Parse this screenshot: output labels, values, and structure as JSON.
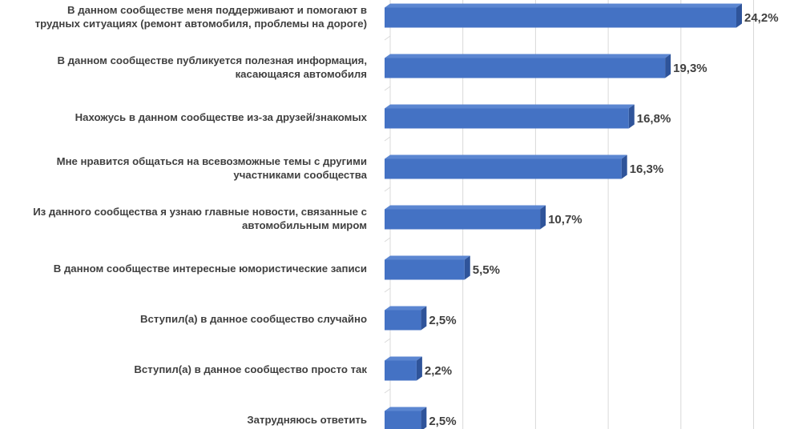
{
  "chart_data": {
    "type": "bar",
    "orientation": "horizontal",
    "style": "3d",
    "color": "#4472C4",
    "grid": true,
    "categories": [
      [
        "В данном сообществе меня поддерживают и помогают в",
        "трудных ситуациях (ремонт автомобиля, проблемы на дороге)"
      ],
      [
        "В данном сообществе публикуется полезная информация,",
        "касающаяся автомобиля"
      ],
      [
        "Нахожусь в данном сообществе из-за друзей/знакомых"
      ],
      [
        "Мне нравится общаться на всевозможные темы с другими",
        "участниками сообщества"
      ],
      [
        "Из данного сообщества я узнаю главные новости, связанные с",
        "автомобильным миром"
      ],
      [
        "В данном сообществе интересные юмористические записи"
      ],
      [
        "Вступил(а) в данное сообщество случайно"
      ],
      [
        "Вступил(а) в данное сообщество просто так"
      ],
      [
        "Затрудняюсь ответить"
      ]
    ],
    "values": [
      24.2,
      19.3,
      16.8,
      16.3,
      10.7,
      5.5,
      2.5,
      2.2,
      2.5
    ],
    "data_labels": [
      "24,2%",
      "19,3%",
      "16,8%",
      "16,3%",
      "10,7%",
      "5,5%",
      "2,5%",
      "2,2%",
      "2,5%"
    ],
    "xlim": [
      0,
      25
    ]
  }
}
